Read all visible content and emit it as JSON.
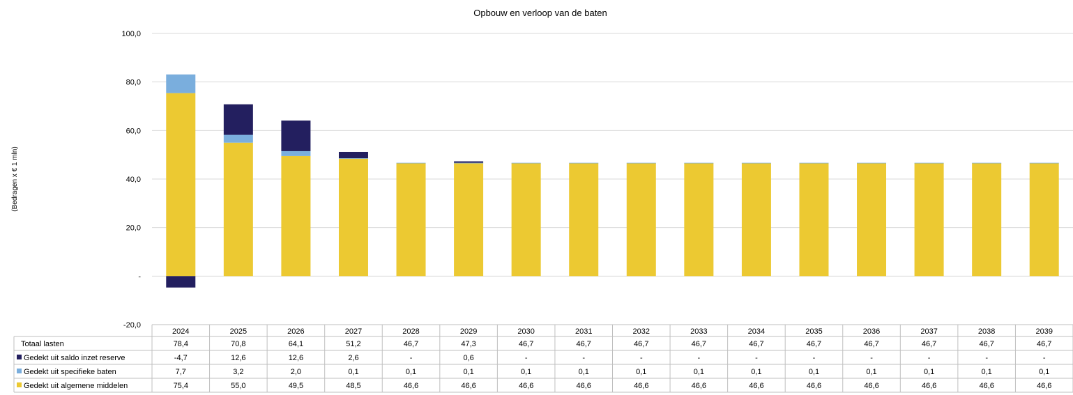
{
  "chart_data": {
    "type": "bar",
    "stacked": true,
    "title": "Opbouw en verloop van de baten",
    "ylabel": "(Bedragen x € 1 mln)",
    "xlabel": "",
    "ylim": [
      -20,
      100
    ],
    "yticks": [
      -20,
      0,
      20,
      40,
      60,
      80,
      100
    ],
    "ytick_labels": [
      "-20,0",
      "-",
      "20,0",
      "40,0",
      "60,0",
      "80,0",
      "100,0"
    ],
    "grid": true,
    "legend": "data-table-left",
    "categories": [
      "2024",
      "2025",
      "2026",
      "2027",
      "2028",
      "2029",
      "2030",
      "2031",
      "2032",
      "2033",
      "2034",
      "2035",
      "2036",
      "2037",
      "2038",
      "2039"
    ],
    "series": [
      {
        "name": "Gedekt uit algemene middelen",
        "color": "#ECC932",
        "values": [
          75.4,
          55.0,
          49.5,
          48.5,
          46.6,
          46.6,
          46.6,
          46.6,
          46.6,
          46.6,
          46.6,
          46.6,
          46.6,
          46.6,
          46.6,
          46.6
        ],
        "labels": [
          "75,4",
          "55,0",
          "49,5",
          "48,5",
          "46,6",
          "46,6",
          "46,6",
          "46,6",
          "46,6",
          "46,6",
          "46,6",
          "46,6",
          "46,6",
          "46,6",
          "46,6",
          "46,6"
        ]
      },
      {
        "name": "Gedekt uit specifieke baten",
        "color": "#7AAEDD",
        "values": [
          7.7,
          3.2,
          2.0,
          0.1,
          0.1,
          0.1,
          0.1,
          0.1,
          0.1,
          0.1,
          0.1,
          0.1,
          0.1,
          0.1,
          0.1,
          0.1
        ],
        "labels": [
          "7,7",
          "3,2",
          "2,0",
          "0,1",
          "0,1",
          "0,1",
          "0,1",
          "0,1",
          "0,1",
          "0,1",
          "0,1",
          "0,1",
          "0,1",
          "0,1",
          "0,1",
          "0,1"
        ]
      },
      {
        "name": "Gedekt uit saldo inzet reserve",
        "color": "#231F5F",
        "values": [
          -4.7,
          12.6,
          12.6,
          2.6,
          0,
          0.6,
          0,
          0,
          0,
          0,
          0,
          0,
          0,
          0,
          0,
          0
        ],
        "labels": [
          "-4,7",
          "12,6",
          "12,6",
          "2,6",
          "-",
          "0,6",
          "-",
          "-",
          "-",
          "-",
          "-",
          "-",
          "-",
          "-",
          "-",
          "-"
        ]
      }
    ],
    "table_rows": [
      {
        "name": "Totaal lasten",
        "color": "",
        "labels": [
          "78,4",
          "70,8",
          "64,1",
          "51,2",
          "46,7",
          "47,3",
          "46,7",
          "46,7",
          "46,7",
          "46,7",
          "46,7",
          "46,7",
          "46,7",
          "46,7",
          "46,7",
          "46,7"
        ]
      },
      {
        "name": "Gedekt uit saldo inzet reserve",
        "color": "#231F5F",
        "labels": [
          "-4,7",
          "12,6",
          "12,6",
          "2,6",
          "-",
          "0,6",
          "-",
          "-",
          "-",
          "-",
          "-",
          "-",
          "-",
          "-",
          "-",
          "-"
        ]
      },
      {
        "name": "Gedekt uit specifieke baten",
        "color": "#7AAEDD",
        "labels": [
          "7,7",
          "3,2",
          "2,0",
          "0,1",
          "0,1",
          "0,1",
          "0,1",
          "0,1",
          "0,1",
          "0,1",
          "0,1",
          "0,1",
          "0,1",
          "0,1",
          "0,1",
          "0,1"
        ]
      },
      {
        "name": "Gedekt uit algemene middelen",
        "color": "#ECC932",
        "labels": [
          "75,4",
          "55,0",
          "49,5",
          "48,5",
          "46,6",
          "46,6",
          "46,6",
          "46,6",
          "46,6",
          "46,6",
          "46,6",
          "46,6",
          "46,6",
          "46,6",
          "46,6",
          "46,6"
        ]
      }
    ]
  }
}
